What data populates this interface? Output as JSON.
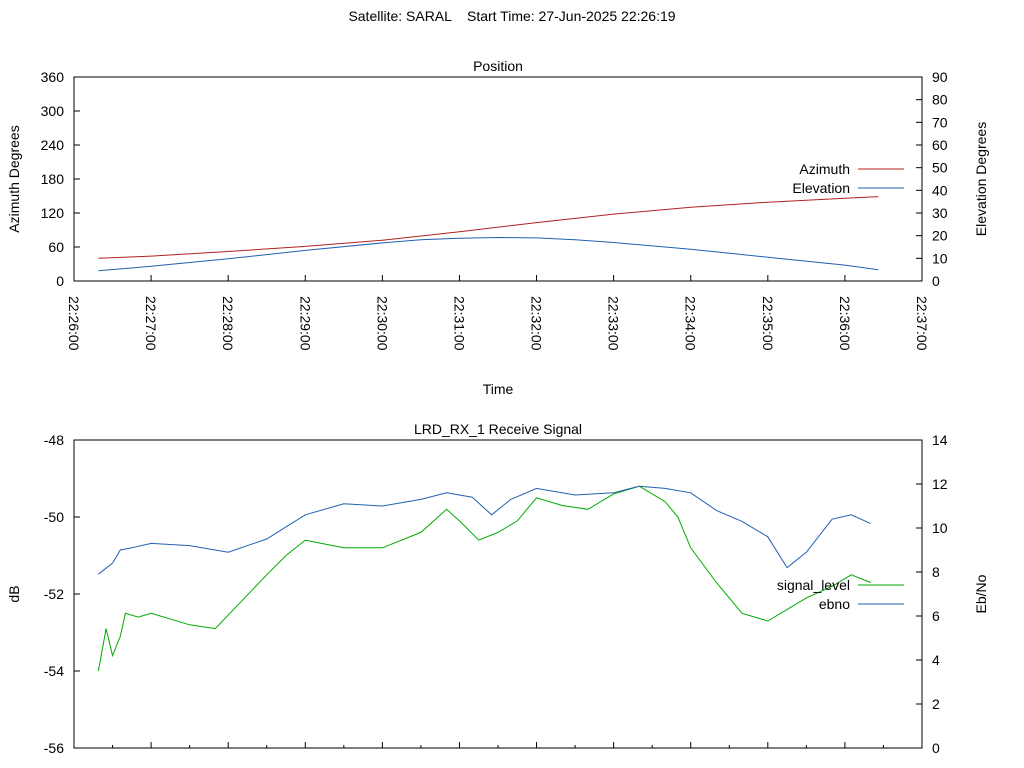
{
  "header": {
    "satellite": "Satellite: SARAL",
    "start_time": "Start Time: 27-Jun-2025 22:26:19"
  },
  "chart_data": [
    {
      "type": "line",
      "title": "Position",
      "xlabel": "Time",
      "ylabel": "Azimuth Degrees",
      "y2label": "Elevation Degrees",
      "xlim": [
        "22:26:00",
        "22:37:00"
      ],
      "xticks": [
        "22:26:00",
        "22:27:00",
        "22:28:00",
        "22:29:00",
        "22:30:00",
        "22:31:00",
        "22:32:00",
        "22:33:00",
        "22:34:00",
        "22:35:00",
        "22:36:00",
        "22:37:00"
      ],
      "ylim": [
        0,
        360
      ],
      "yticks": [
        0,
        60,
        120,
        180,
        240,
        300,
        360
      ],
      "y2lim": [
        0,
        90
      ],
      "y2ticks": [
        0,
        10,
        20,
        30,
        40,
        50,
        60,
        70,
        80,
        90
      ],
      "legend_position": "top-right",
      "series": [
        {
          "name": "Azimuth",
          "axis": "left",
          "color": "#b22222",
          "x": [
            "22:26:19",
            "22:27:00",
            "22:28:00",
            "22:29:00",
            "22:30:00",
            "22:31:00",
            "22:32:00",
            "22:33:00",
            "22:34:00",
            "22:35:00",
            "22:36:00",
            "22:36:26"
          ],
          "values": [
            40,
            44,
            52,
            61,
            72,
            87,
            103,
            118,
            130,
            139,
            146,
            149
          ]
        },
        {
          "name": "Elevation",
          "axis": "right",
          "color": "#2060b0",
          "x": [
            "22:26:19",
            "22:27:00",
            "22:28:00",
            "22:29:00",
            "22:30:00",
            "22:30:30",
            "22:31:00",
            "22:31:30",
            "22:32:00",
            "22:32:30",
            "22:33:00",
            "22:34:00",
            "22:35:00",
            "22:36:00",
            "22:36:26"
          ],
          "values": [
            4.5,
            6.5,
            9.8,
            13.5,
            16.8,
            18.2,
            18.9,
            19.2,
            19.0,
            18.2,
            17.0,
            14.0,
            10.5,
            7.0,
            5.0
          ]
        }
      ]
    },
    {
      "type": "line",
      "title": "LRD_RX_1 Receive Signal",
      "xlabel": "",
      "ylabel": "dB",
      "y2label": "Eb/No",
      "xlim": [
        "22:26:00",
        "22:37:00"
      ],
      "ylim": [
        -56,
        -48
      ],
      "yticks": [
        -56,
        -54,
        -52,
        -50,
        -48
      ],
      "y2lim": [
        0,
        14
      ],
      "y2ticks": [
        0,
        2,
        4,
        6,
        8,
        10,
        12,
        14
      ],
      "legend_position": "right",
      "series": [
        {
          "name": "signal_level",
          "axis": "left",
          "color": "#00aa00",
          "x": [
            "22:26:19",
            "22:26:25",
            "22:26:30",
            "22:26:36",
            "22:26:40",
            "22:26:50",
            "22:27:00",
            "22:27:30",
            "22:27:50",
            "22:28:10",
            "22:28:30",
            "22:28:45",
            "22:29:00",
            "22:29:15",
            "22:29:30",
            "22:30:00",
            "22:30:30",
            "22:30:50",
            "22:31:00",
            "22:31:15",
            "22:31:30",
            "22:31:45",
            "22:32:00",
            "22:32:20",
            "22:32:40",
            "22:33:00",
            "22:33:20",
            "22:33:40",
            "22:33:50",
            "22:34:00",
            "22:34:20",
            "22:34:40",
            "22:35:00",
            "22:35:15",
            "22:35:30",
            "22:35:50",
            "22:36:05",
            "22:36:20"
          ],
          "values": [
            -54.0,
            -52.9,
            -53.6,
            -53.1,
            -52.5,
            -52.6,
            -52.5,
            -52.8,
            -52.9,
            -52.2,
            -51.5,
            -51.0,
            -50.6,
            -50.7,
            -50.8,
            -50.8,
            -50.4,
            -49.8,
            -50.1,
            -50.6,
            -50.4,
            -50.1,
            -49.5,
            -49.7,
            -49.8,
            -49.4,
            -49.2,
            -49.6,
            -50.0,
            -50.8,
            -51.7,
            -52.5,
            -52.7,
            -52.4,
            -52.1,
            -51.8,
            -51.5,
            -51.7
          ]
        },
        {
          "name": "ebno",
          "axis": "right",
          "color": "#2060b0",
          "x": [
            "22:26:19",
            "22:26:30",
            "22:26:36",
            "22:26:45",
            "22:27:00",
            "22:27:30",
            "22:28:00",
            "22:28:30",
            "22:29:00",
            "22:29:30",
            "22:30:00",
            "22:30:30",
            "22:30:50",
            "22:31:10",
            "22:31:25",
            "22:31:40",
            "22:32:00",
            "22:32:30",
            "22:33:00",
            "22:33:20",
            "22:33:40",
            "22:34:00",
            "22:34:20",
            "22:34:40",
            "22:35:00",
            "22:35:15",
            "22:35:30",
            "22:35:50",
            "22:36:05",
            "22:36:20"
          ],
          "values": [
            7.9,
            8.4,
            9.0,
            9.1,
            9.3,
            9.2,
            8.9,
            9.5,
            10.6,
            11.1,
            11.0,
            11.3,
            11.6,
            11.4,
            10.6,
            11.3,
            11.8,
            11.5,
            11.6,
            11.9,
            11.8,
            11.6,
            10.8,
            10.3,
            9.6,
            8.2,
            8.9,
            10.4,
            10.6,
            10.2
          ]
        }
      ]
    }
  ]
}
